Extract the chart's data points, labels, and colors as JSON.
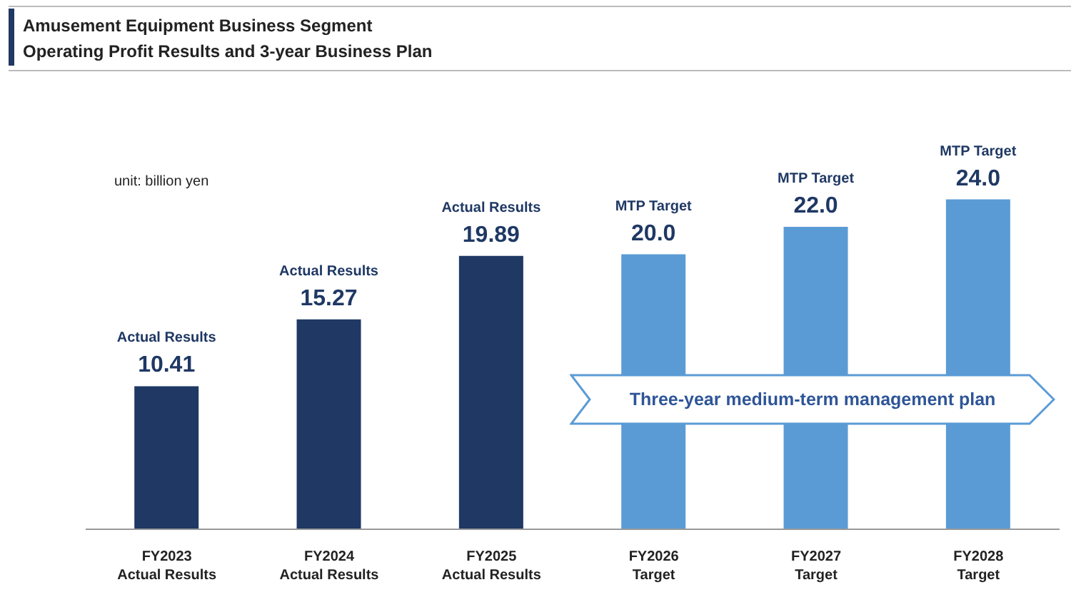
{
  "chart_data": {
    "type": "bar",
    "title": "Amusement Equipment Business Segment",
    "subtitle": "Operating Profit Results and 3-year Business Plan",
    "categories": [
      "FY2023 Actual Results",
      "FY2024 Actual Results",
      "FY2025 Actual Results",
      "FY2026 Target",
      "FY2027 Target",
      "FY2028 Target"
    ],
    "values": [
      10.41,
      15.27,
      19.89,
      20.0,
      22.0,
      24.0
    ],
    "colors": [
      "#1f3864",
      "#1f3864",
      "#1f3864",
      "#5b9bd5",
      "#5b9bd5",
      "#5b9bd5"
    ],
    "value_labels": [
      "10.41",
      "15.27",
      "19.89",
      "20.0",
      "22.0",
      "24.0"
    ],
    "annotations": [
      {
        "text": "Actual Results",
        "x": "FY2023 Actual Results",
        "y": 10.41
      },
      {
        "text": "Actual Results",
        "x": "FY2024 Actual Results",
        "y": 15.27
      },
      {
        "text": "Actual Results",
        "x": "FY2025 Actual Results",
        "y": 19.89
      },
      {
        "text": "MTP Target",
        "x": "FY2026 Target",
        "y": 20.0
      },
      {
        "text": "MTP Target",
        "x": "FY2027 Target",
        "y": 22.0
      },
      {
        "text": "MTP Target",
        "x": "FY2028 Target",
        "y": 24.0
      },
      "unit: billion yen",
      "Three-year medium-term management plan"
    ],
    "grid": false,
    "legend": false
  }
}
